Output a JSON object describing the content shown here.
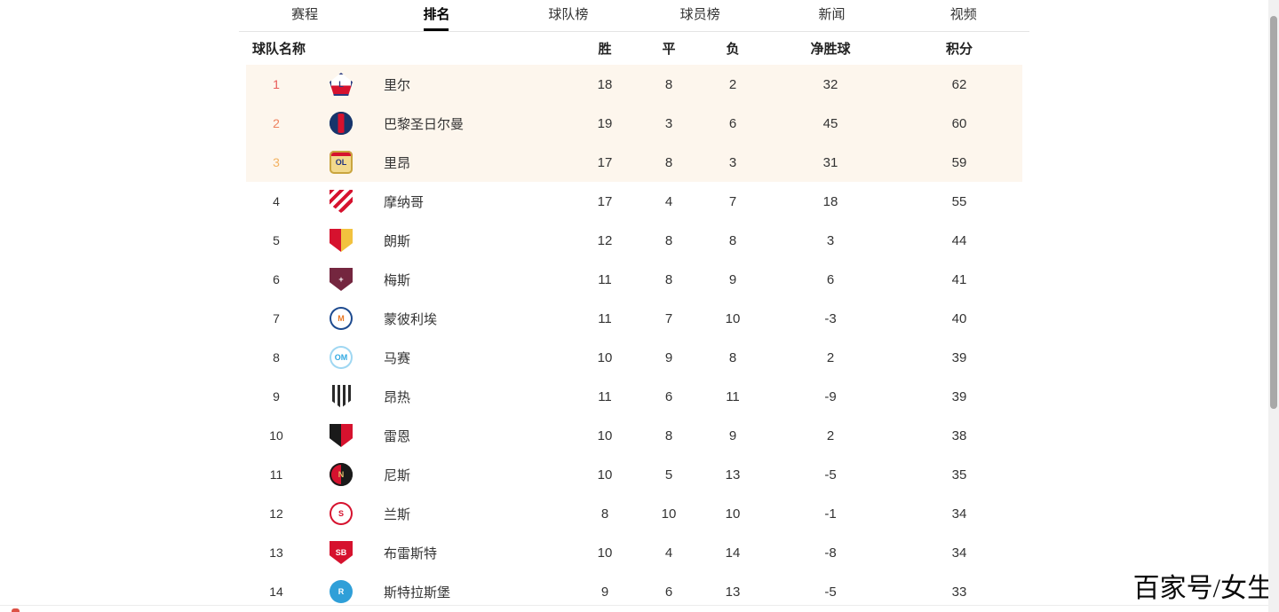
{
  "tabs": {
    "items": [
      {
        "label": "赛程",
        "active": false
      },
      {
        "label": "排名",
        "active": true
      },
      {
        "label": "球队榜",
        "active": false
      },
      {
        "label": "球员榜",
        "active": false
      },
      {
        "label": "新闻",
        "active": false
      },
      {
        "label": "视频",
        "active": false
      }
    ]
  },
  "table": {
    "headers": {
      "team": "球队名称",
      "win": "胜",
      "draw": "平",
      "loss": "负",
      "gd": "净胜球",
      "pts": "积分"
    },
    "highlight_rows": 3,
    "highlight_bg": "#fdf6ed",
    "rank_colors": [
      "#e85a58",
      "#ee825f",
      "#f3b261"
    ],
    "rank_default_color": "#333333",
    "rows": [
      {
        "rank": 1,
        "name": "里尔",
        "win": 18,
        "draw": 8,
        "loss": 2,
        "gd": 32,
        "pts": 62,
        "logo": {
          "icon": "lille-logo-icon",
          "shape": "pentagon",
          "pattern": "hsplit",
          "colors": [
            "#ffffff",
            "#d6122e"
          ],
          "border": "#2b3a7e",
          "text": "L",
          "text_color": "#2b3a7e"
        }
      },
      {
        "rank": 2,
        "name": "巴黎圣日尔曼",
        "win": 19,
        "draw": 3,
        "loss": 6,
        "gd": 45,
        "pts": 60,
        "logo": {
          "icon": "psg-logo-icon",
          "shape": "circle",
          "pattern": "center-stripe",
          "colors": [
            "#17356b",
            "#d6122e"
          ],
          "border": "#17356b",
          "text": "",
          "text_color": "#ffffff"
        }
      },
      {
        "rank": 3,
        "name": "里昂",
        "win": 17,
        "draw": 8,
        "loss": 3,
        "gd": 31,
        "pts": 59,
        "logo": {
          "icon": "lyon-logo-icon",
          "shape": "square",
          "pattern": "band-top",
          "colors": [
            "#d6122e",
            "#f2d98c"
          ],
          "border": "#c9a53f",
          "text": "OL",
          "text_color": "#20337f"
        }
      },
      {
        "rank": 4,
        "name": "摩纳哥",
        "win": 17,
        "draw": 4,
        "loss": 7,
        "gd": 18,
        "pts": 55,
        "logo": {
          "icon": "monaco-logo-icon",
          "shape": "shield",
          "pattern": "diag-stripes",
          "colors": [
            "#d6122e",
            "#ffffff"
          ],
          "border": "",
          "text": "",
          "text_color": "#ffffff"
        }
      },
      {
        "rank": 5,
        "name": "朗斯",
        "win": 12,
        "draw": 8,
        "loss": 8,
        "gd": 3,
        "pts": 44,
        "logo": {
          "icon": "lens-logo-icon",
          "shape": "shield",
          "pattern": "vsplit",
          "colors": [
            "#d6122e",
            "#f2c23e"
          ],
          "border": "",
          "text": "",
          "text_color": "#ffffff"
        }
      },
      {
        "rank": 6,
        "name": "梅斯",
        "win": 11,
        "draw": 8,
        "loss": 9,
        "gd": 6,
        "pts": 41,
        "logo": {
          "icon": "metz-logo-icon",
          "shape": "shield",
          "pattern": "solid",
          "colors": [
            "#74263f"
          ],
          "border": "",
          "text": "+",
          "text_color": "#ffffff"
        }
      },
      {
        "rank": 7,
        "name": "蒙彼利埃",
        "win": 11,
        "draw": 7,
        "loss": 10,
        "gd": -3,
        "pts": 40,
        "logo": {
          "icon": "montpellier-logo-icon",
          "shape": "circle",
          "pattern": "solid",
          "colors": [
            "#ffffff"
          ],
          "border": "#1d4a8f",
          "text": "M",
          "text_color": "#e87722"
        }
      },
      {
        "rank": 8,
        "name": "马赛",
        "win": 10,
        "draw": 9,
        "loss": 8,
        "gd": 2,
        "pts": 39,
        "logo": {
          "icon": "marseille-logo-icon",
          "shape": "circle",
          "pattern": "solid",
          "colors": [
            "#ffffff"
          ],
          "border": "#9fd7f2",
          "text": "OM",
          "text_color": "#2fa8e1"
        }
      },
      {
        "rank": 9,
        "name": "昂热",
        "win": 11,
        "draw": 6,
        "loss": 11,
        "gd": -9,
        "pts": 39,
        "logo": {
          "icon": "angers-logo-icon",
          "shape": "shield",
          "pattern": "v-stripes",
          "colors": [
            "#ffffff",
            "#2a2a2a"
          ],
          "border": "",
          "text": "",
          "text_color": "#ffffff"
        }
      },
      {
        "rank": 10,
        "name": "雷恩",
        "win": 10,
        "draw": 8,
        "loss": 9,
        "gd": 2,
        "pts": 38,
        "logo": {
          "icon": "rennes-logo-icon",
          "shape": "shield",
          "pattern": "vsplit",
          "colors": [
            "#1a1a1a",
            "#d6122e"
          ],
          "border": "",
          "text": "",
          "text_color": "#ffffff"
        }
      },
      {
        "rank": 11,
        "name": "尼斯",
        "win": 10,
        "draw": 5,
        "loss": 13,
        "gd": -5,
        "pts": 35,
        "logo": {
          "icon": "nice-logo-icon",
          "shape": "circle",
          "pattern": "vsplit",
          "colors": [
            "#d6122e",
            "#1a1a1a"
          ],
          "border": "#1a1a1a",
          "text": "N",
          "text_color": "#e3c06c"
        }
      },
      {
        "rank": 12,
        "name": "兰斯",
        "win": 8,
        "draw": 10,
        "loss": 10,
        "gd": -1,
        "pts": 34,
        "logo": {
          "icon": "reims-logo-icon",
          "shape": "circle",
          "pattern": "solid",
          "colors": [
            "#ffffff"
          ],
          "border": "#d6122e",
          "text": "S",
          "text_color": "#d6122e"
        }
      },
      {
        "rank": 13,
        "name": "布雷斯特",
        "win": 10,
        "draw": 4,
        "loss": 14,
        "gd": -8,
        "pts": 34,
        "logo": {
          "icon": "brest-logo-icon",
          "shape": "shield",
          "pattern": "solid",
          "colors": [
            "#d6122e"
          ],
          "border": "",
          "text": "SB",
          "text_color": "#ffffff"
        }
      },
      {
        "rank": 14,
        "name": "斯特拉斯堡",
        "win": 9,
        "draw": 6,
        "loss": 13,
        "gd": -5,
        "pts": 33,
        "logo": {
          "icon": "strasbourg-logo-icon",
          "shape": "circle",
          "pattern": "solid",
          "colors": [
            "#2f9fd8"
          ],
          "border": "",
          "text": "R",
          "text_color": "#ffffff"
        }
      }
    ]
  },
  "watermark": "百家号/女生",
  "colors": {
    "tab_active": "#000000",
    "tab_inactive": "#333333",
    "divider": "#e4e4e4",
    "scroll_thumb": "#a8a8a8"
  }
}
